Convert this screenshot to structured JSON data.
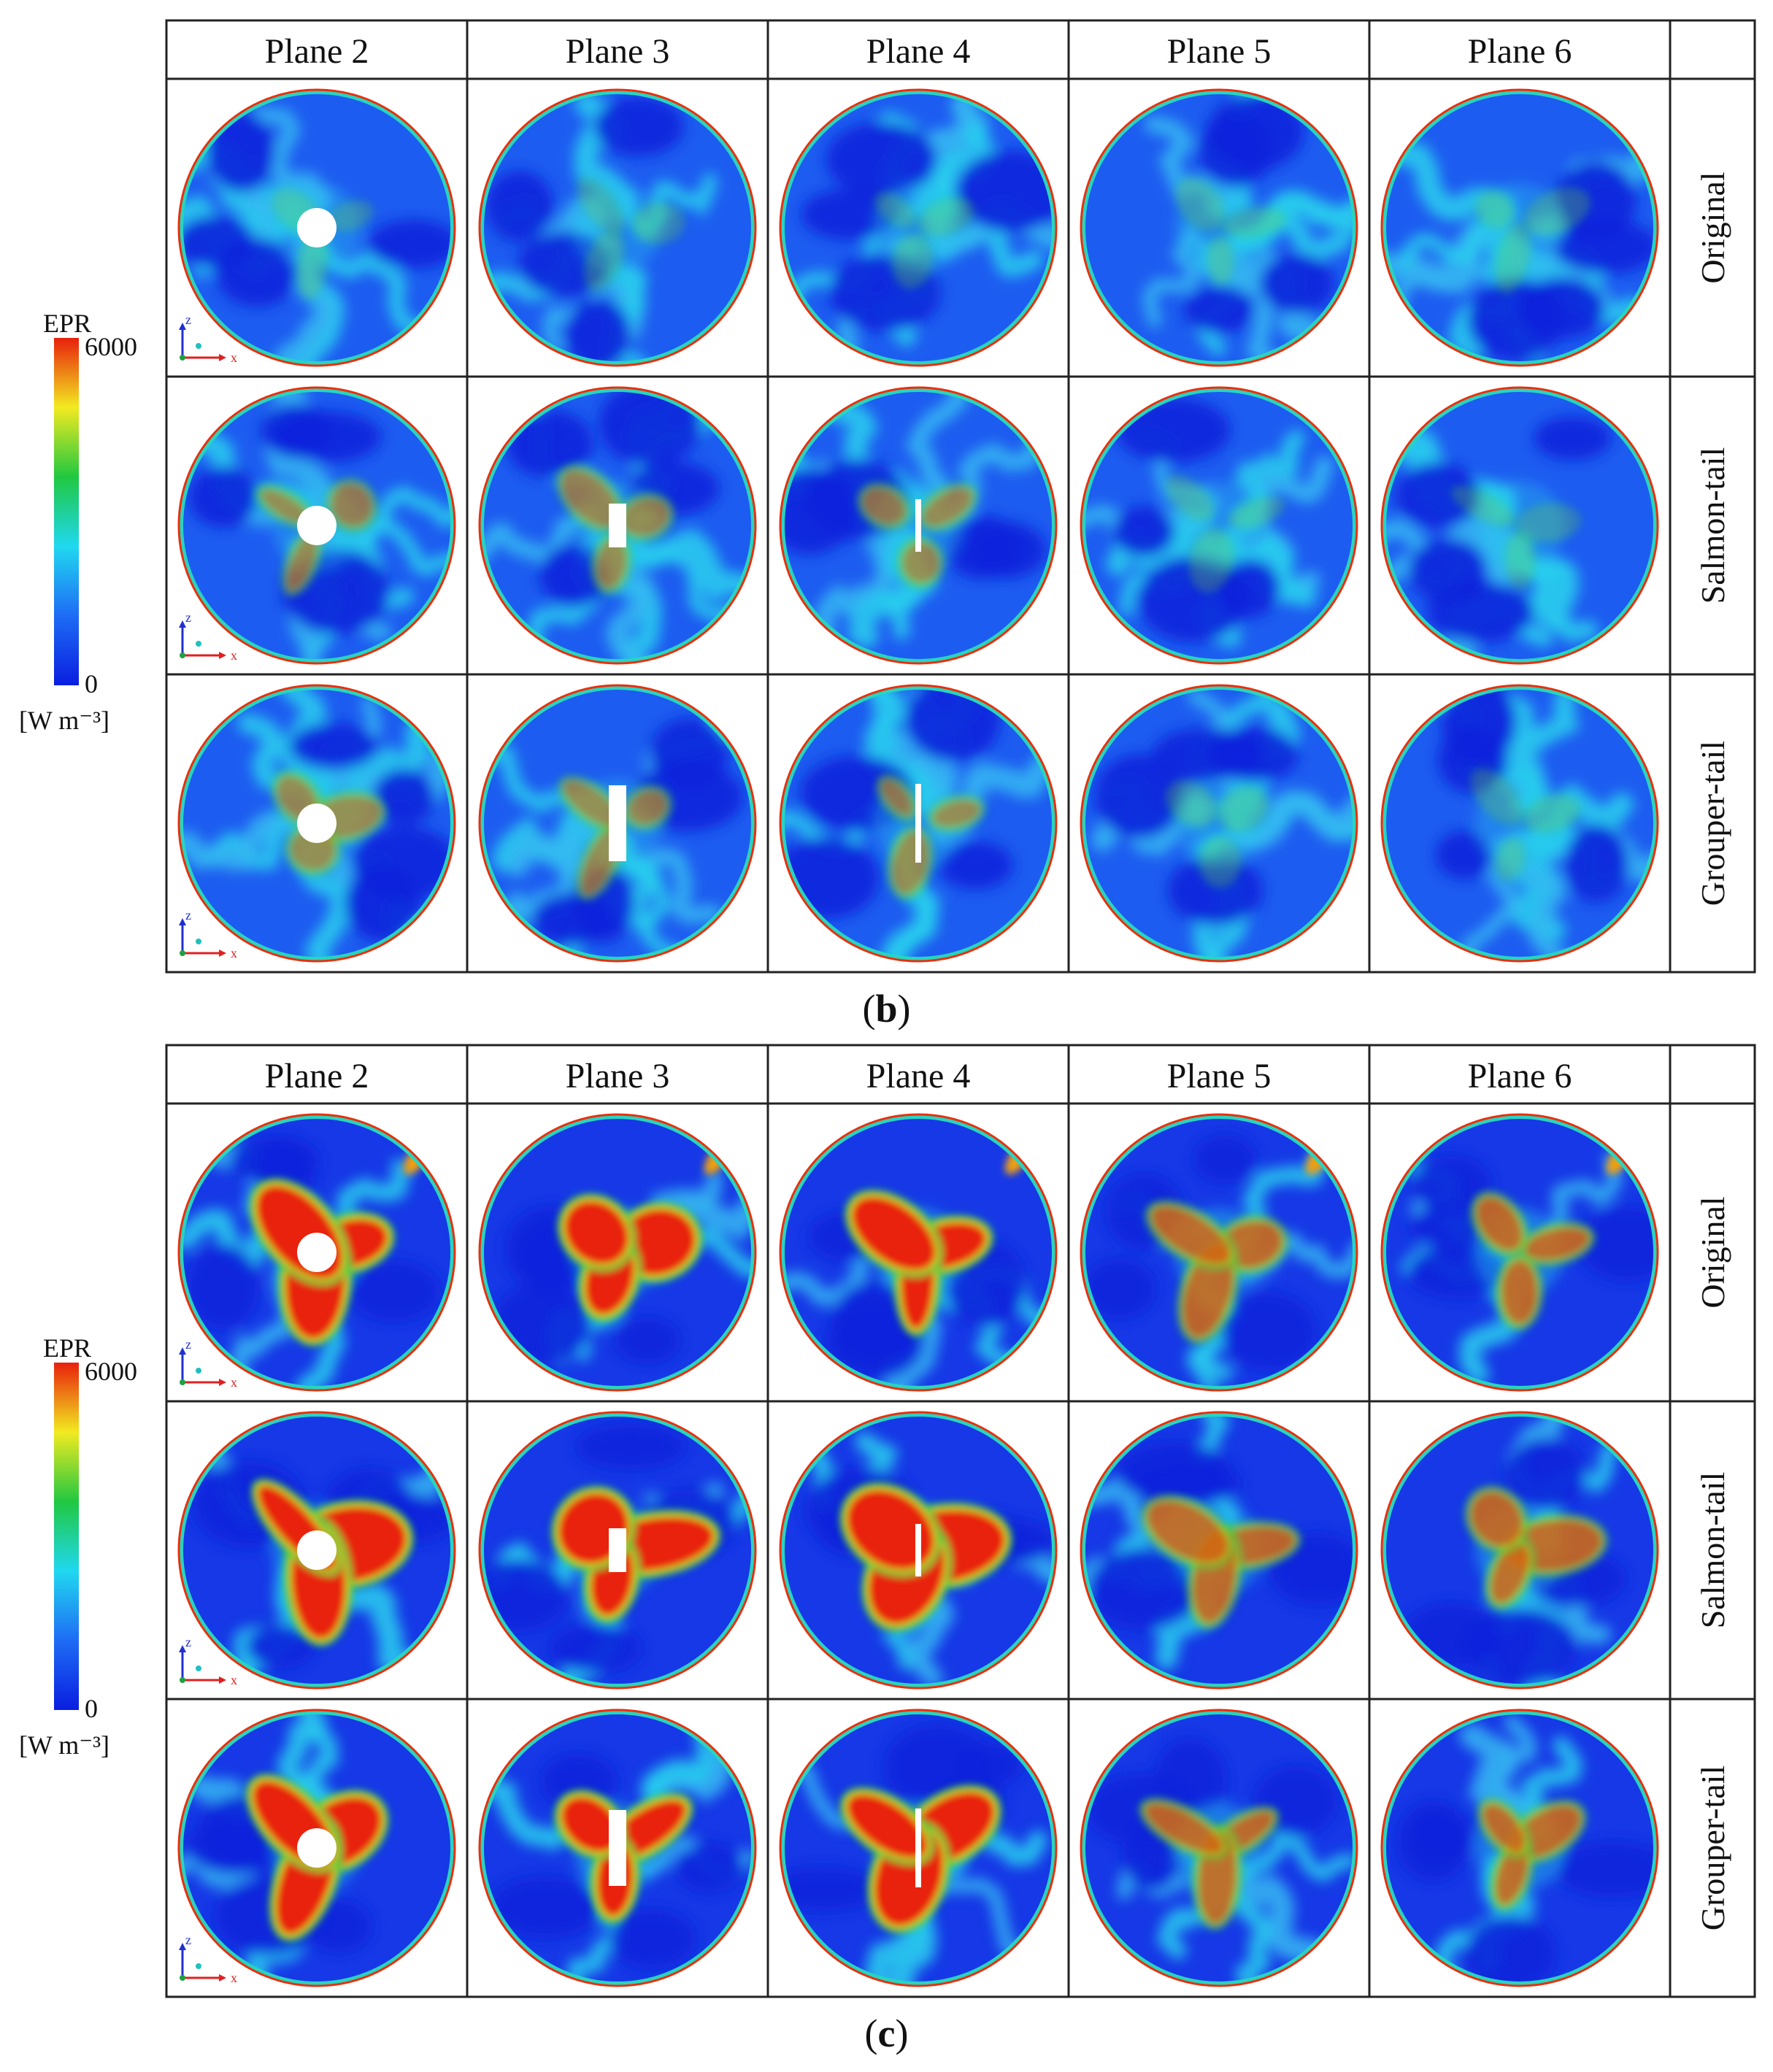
{
  "colors": {
    "deep_blue": "#1030e0",
    "mid_blue": "#1e64f2",
    "cyan": "#20d2ef",
    "green": "#20c840",
    "yellow": "#f0e820",
    "orange": "#ff8a10",
    "red": "#e8200c",
    "white_hub": "#ffffff"
  },
  "legend": {
    "title": "EPR",
    "max": "6000",
    "min": "0",
    "unit": "[W m⁻³]"
  },
  "axes_labels": {
    "z": "z",
    "x": "x"
  },
  "panels": [
    {
      "id": "b",
      "caption_letter": "b",
      "columns": [
        "Plane 2",
        "Plane 3",
        "Plane 4",
        "Plane 5",
        "Plane 6"
      ],
      "rows": [
        "Original",
        "Salmon-tail",
        "Grouper-tail"
      ]
    },
    {
      "id": "c",
      "caption_letter": "c",
      "columns": [
        "Plane 2",
        "Plane 3",
        "Plane 4",
        "Plane 5",
        "Plane 6"
      ],
      "rows": [
        "Original",
        "Salmon-tail",
        "Grouper-tail"
      ]
    }
  ]
}
